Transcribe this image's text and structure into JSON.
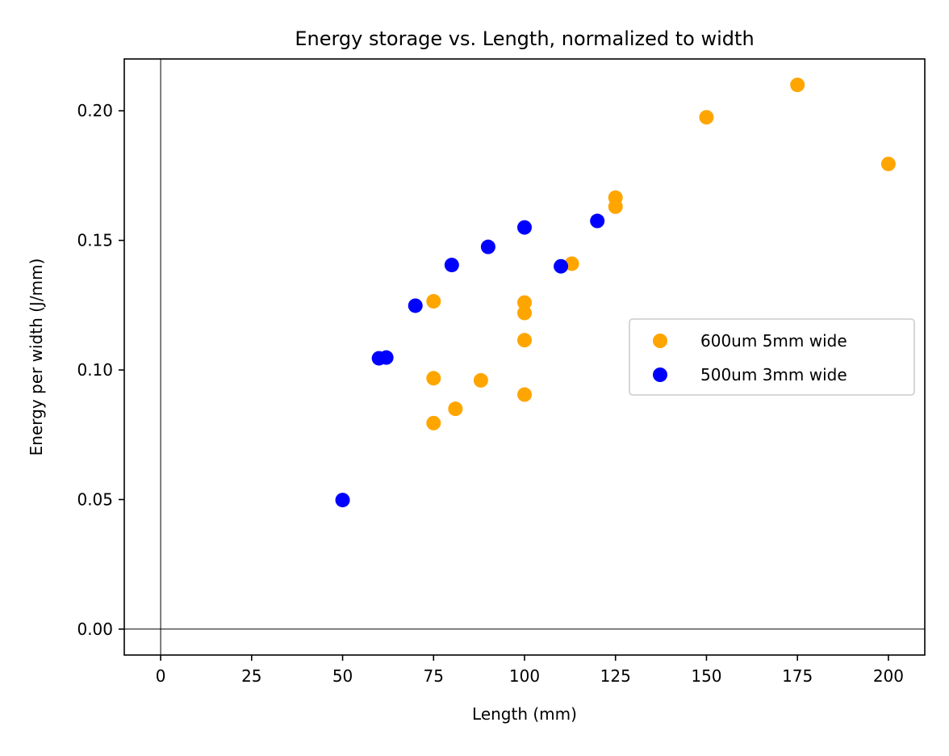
{
  "chart_data": {
    "type": "scatter",
    "title": "Energy storage vs. Length, normalized to width",
    "xlabel": "Length (mm)",
    "ylabel": "Energy per width (J/mm)",
    "xlim": [
      -10,
      210
    ],
    "ylim": [
      -0.01,
      0.22
    ],
    "x_ticks": [
      {
        "value": 0,
        "label": "0"
      },
      {
        "value": 25,
        "label": "25"
      },
      {
        "value": 50,
        "label": "50"
      },
      {
        "value": 75,
        "label": "75"
      },
      {
        "value": 100,
        "label": "100"
      },
      {
        "value": 125,
        "label": "125"
      },
      {
        "value": 150,
        "label": "150"
      },
      {
        "value": 175,
        "label": "175"
      },
      {
        "value": 200,
        "label": "200"
      }
    ],
    "y_ticks": [
      {
        "value": 0.0,
        "label": "0.00"
      },
      {
        "value": 0.05,
        "label": "0.05"
      },
      {
        "value": 0.1,
        "label": "0.10"
      },
      {
        "value": 0.15,
        "label": "0.15"
      },
      {
        "value": 0.2,
        "label": "0.20"
      }
    ],
    "reference_lines": {
      "x": 0,
      "y": 0
    },
    "grid": false,
    "legend_position": "center-right",
    "series": [
      {
        "name": "600um 5mm wide",
        "color": "#ffa500",
        "points": [
          [
            75,
            0.0795
          ],
          [
            75,
            0.0968
          ],
          [
            75,
            0.1265
          ],
          [
            81,
            0.085
          ],
          [
            88,
            0.096
          ],
          [
            100,
            0.0905
          ],
          [
            100,
            0.1115
          ],
          [
            100,
            0.122
          ],
          [
            100,
            0.126
          ],
          [
            113,
            0.141
          ],
          [
            125,
            0.163
          ],
          [
            125,
            0.1665
          ],
          [
            150,
            0.1975
          ],
          [
            175,
            0.21
          ],
          [
            200,
            0.1795
          ]
        ]
      },
      {
        "name": "500um 3mm wide",
        "color": "#0000ff",
        "points": [
          [
            50,
            0.0498
          ],
          [
            60,
            0.1045
          ],
          [
            62,
            0.1048
          ],
          [
            70,
            0.1248
          ],
          [
            80,
            0.1405
          ],
          [
            90,
            0.1475
          ],
          [
            100,
            0.155
          ],
          [
            110,
            0.14
          ],
          [
            120,
            0.1575
          ]
        ]
      }
    ]
  }
}
